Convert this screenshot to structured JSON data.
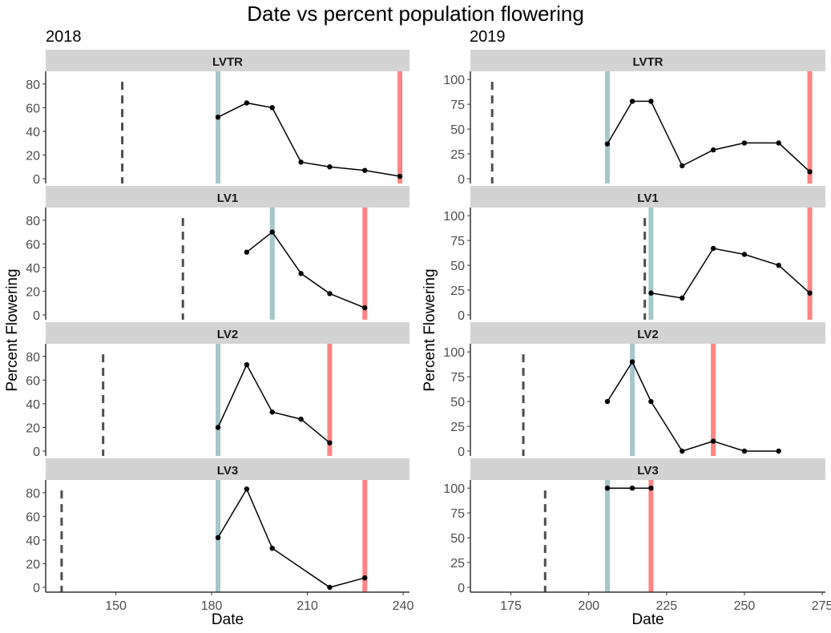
{
  "title": "Date vs percent population flowering",
  "chart_data": [
    {
      "type": "line",
      "title": "2018",
      "xlabel": "Date",
      "ylabel": "Percent Flowering",
      "xlim": [
        128,
        242
      ],
      "ylim": [
        0,
        88
      ],
      "x_ticks": [
        150,
        180,
        210,
        240
      ],
      "y_ticks": [
        0,
        20,
        40,
        60,
        80
      ],
      "grid": false,
      "panels": [
        {
          "name": "LVTR",
          "dashed_line": 152,
          "teal_line": 182,
          "red_line": 239,
          "x": [
            182,
            191,
            199,
            208,
            217,
            228,
            239
          ],
          "y": [
            52,
            64,
            60,
            14,
            10,
            7,
            2
          ]
        },
        {
          "name": "LV1",
          "dashed_line": 171,
          "teal_line": 199,
          "red_line": 228,
          "x": [
            191,
            199,
            208,
            217,
            228
          ],
          "y": [
            53,
            70,
            35,
            18,
            6
          ]
        },
        {
          "name": "LV2",
          "dashed_line": 146,
          "teal_line": 182,
          "red_line": 217,
          "x": [
            182,
            191,
            199,
            208,
            217
          ],
          "y": [
            20,
            73,
            33,
            27,
            7
          ]
        },
        {
          "name": "LV3",
          "dashed_line": 133,
          "teal_line": 182,
          "red_line": 228,
          "x": [
            182,
            191,
            199,
            217,
            228
          ],
          "y": [
            42,
            83,
            33,
            0,
            8
          ]
        }
      ]
    },
    {
      "type": "line",
      "title": "2019",
      "xlabel": "Date",
      "ylabel": "Percent Flowering",
      "xlim": [
        162,
        276
      ],
      "ylim": [
        0,
        105
      ],
      "x_ticks": [
        175,
        200,
        225,
        250,
        275
      ],
      "y_ticks": [
        0,
        25,
        50,
        75,
        100
      ],
      "grid": false,
      "panels": [
        {
          "name": "LVTR",
          "dashed_line": 169,
          "teal_line": 206,
          "red_line": 271,
          "x": [
            206,
            214,
            220,
            230,
            240,
            250,
            261,
            271
          ],
          "y": [
            35,
            78,
            78,
            13,
            29,
            36,
            36,
            7
          ]
        },
        {
          "name": "LV1",
          "dashed_line": 218,
          "teal_line": 220,
          "red_line": 271,
          "x": [
            220,
            230,
            240,
            250,
            261,
            271
          ],
          "y": [
            22,
            17,
            67,
            61,
            50,
            22
          ]
        },
        {
          "name": "LV2",
          "dashed_line": 179,
          "teal_line": 214,
          "red_line": 240,
          "x": [
            206,
            214,
            220,
            230,
            240,
            250,
            261
          ],
          "y": [
            50,
            90,
            50,
            0,
            10,
            0,
            0
          ]
        },
        {
          "name": "LV3",
          "dashed_line": 186,
          "teal_line": 206,
          "red_line": 220,
          "x": [
            206,
            214,
            220
          ],
          "y": [
            100,
            100,
            100
          ]
        }
      ]
    }
  ],
  "colors": {
    "strip": "#d3d3d3",
    "teal": "#7fb0b5",
    "red": "#ff5c5c",
    "dashed": "#4d4d4d",
    "line": "#000000",
    "axis": "#333333"
  }
}
